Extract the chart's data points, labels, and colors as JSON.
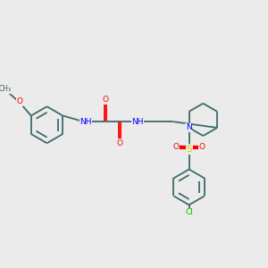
{
  "background_color": "#ebebeb",
  "bond_color": "#3d6b6b",
  "atom_colors": {
    "O": "#ff0000",
    "N": "#0000ff",
    "S": "#cccc00",
    "Cl": "#00bb00",
    "C": "#3d6b6b",
    "H": "#808080"
  },
  "figsize": [
    3.0,
    3.0
  ],
  "dpi": 100,
  "xlim": [
    0,
    10
  ],
  "ylim": [
    0,
    10
  ]
}
